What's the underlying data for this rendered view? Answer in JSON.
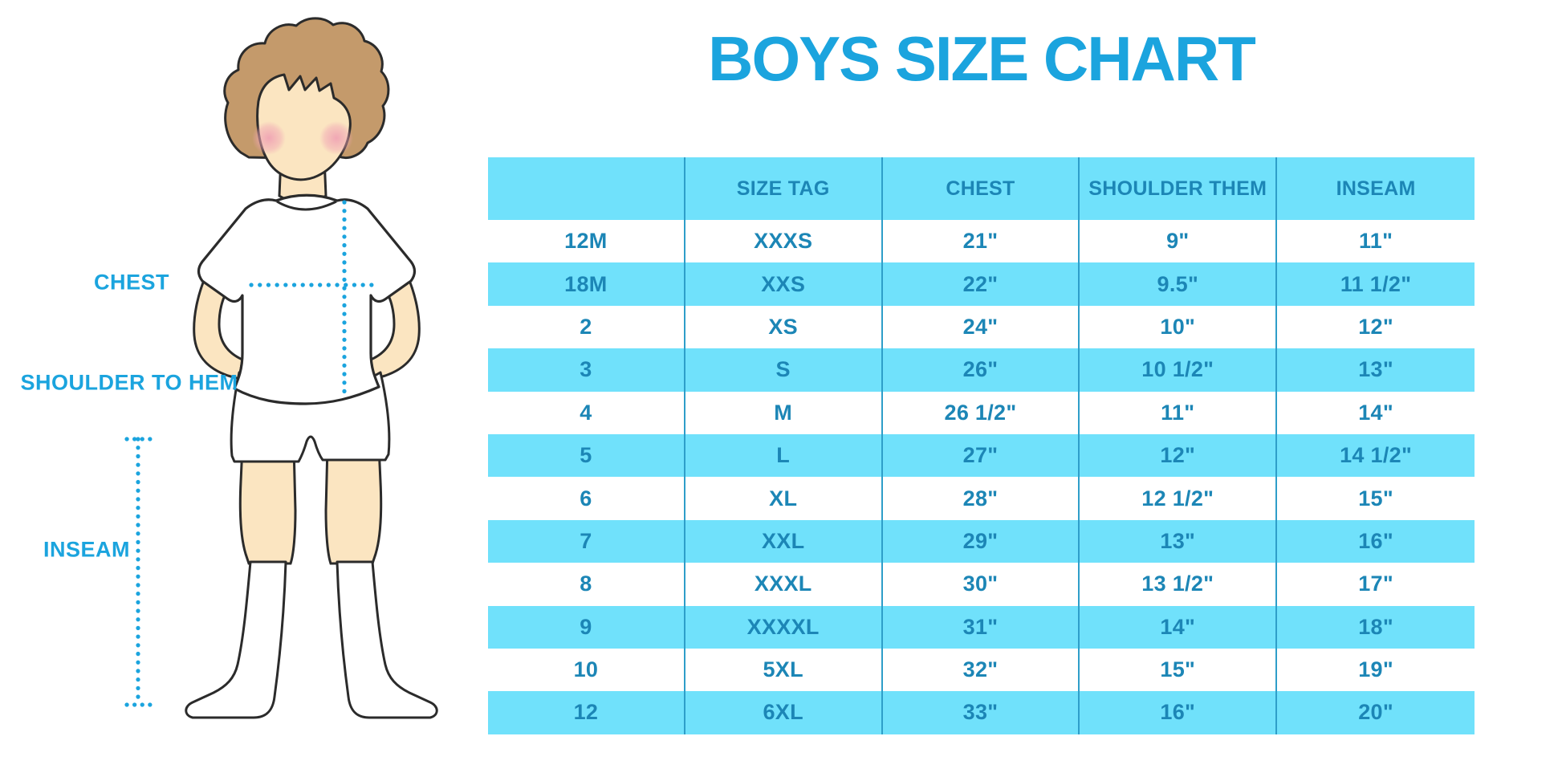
{
  "title": "BOYS SIZE CHART",
  "figure": {
    "labels": {
      "chest": "CHEST",
      "shoulder_to_hem": "SHOULDER TO HEM",
      "inseam": "INSEAM"
    }
  },
  "chart_data": {
    "type": "table",
    "title": "BOYS SIZE CHART",
    "columns": [
      "",
      "SIZE TAG",
      "CHEST",
      "SHOULDER THEM",
      "INSEAM"
    ],
    "rows": [
      [
        "12M",
        "XXXS",
        "21\"",
        "9\"",
        "11\""
      ],
      [
        "18M",
        "XXS",
        "22\"",
        "9.5\"",
        "11 1/2\""
      ],
      [
        "2",
        "XS",
        "24\"",
        "10\"",
        "12\""
      ],
      [
        "3",
        "S",
        "26\"",
        "10 1/2\"",
        "13\""
      ],
      [
        "4",
        "M",
        "26 1/2\"",
        "11\"",
        "14\""
      ],
      [
        "5",
        "L",
        "27\"",
        "12\"",
        "14 1/2\""
      ],
      [
        "6",
        "XL",
        "28\"",
        "12 1/2\"",
        "15\""
      ],
      [
        "7",
        "XXL",
        "29\"",
        "13\"",
        "16\""
      ],
      [
        "8",
        "XXXL",
        "30\"",
        "13 1/2\"",
        "17\""
      ],
      [
        "9",
        "XXXXL",
        "31\"",
        "14\"",
        "18\""
      ],
      [
        "10",
        "5XL",
        "32\"",
        "15\"",
        "19\""
      ],
      [
        "12",
        "6XL",
        "33\"",
        "16\"",
        "20\""
      ]
    ],
    "striping": "header and alternate rows cyan, others white",
    "legend_position": "none",
    "grid": "vertical column separators only"
  },
  "colors": {
    "accent_blue": "#1BA4DE",
    "table_text_blue": "#1C86B6",
    "row_cyan": "#70E1FB",
    "grid_line": "#2E9EC9",
    "skin": "#FBE5C1",
    "hair": "#C49A6B",
    "blush": "#F0A4B4",
    "outline": "#2B2B2B"
  }
}
